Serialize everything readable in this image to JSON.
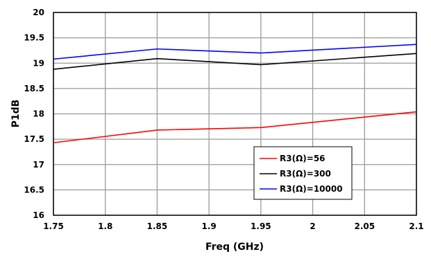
{
  "chart_data": {
    "type": "line",
    "title": "",
    "xlabel": "Freq (GHz)",
    "ylabel": "P1dB",
    "xlim": [
      1.75,
      2.1
    ],
    "ylim": [
      16,
      20
    ],
    "xticks": [
      "1.75",
      "1.8",
      "1.85",
      "1.9",
      "1.95",
      "2",
      "2.05",
      "2.1"
    ],
    "yticks": [
      "16",
      "16.5",
      "17",
      "17.5",
      "18",
      "18.5",
      "19",
      "19.5",
      "20"
    ],
    "grid": true,
    "legend_position": "lower-right",
    "x": [
      1.75,
      1.85,
      1.95,
      2.1
    ],
    "series": [
      {
        "name": "R3(Ω)=56",
        "color": "#ff0000",
        "values": [
          17.43,
          17.68,
          17.73,
          18.04
        ]
      },
      {
        "name": "R3(Ω)=300",
        "color": "#000000",
        "values": [
          18.88,
          19.09,
          18.97,
          19.19
        ]
      },
      {
        "name": "R3(Ω)=10000",
        "color": "#0000ff",
        "values": [
          19.08,
          19.28,
          19.2,
          19.37
        ]
      }
    ]
  }
}
